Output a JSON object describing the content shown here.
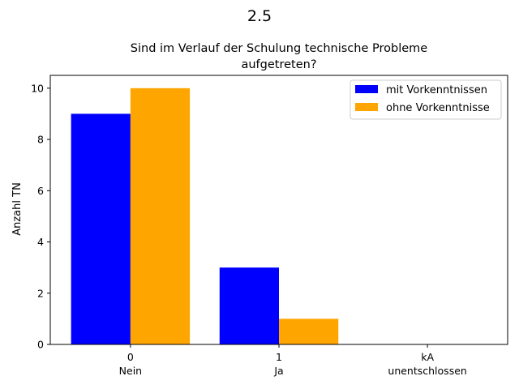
{
  "figure": {
    "suptitle": "2.5"
  },
  "chart_data": {
    "type": "bar",
    "title_lines": [
      "Sind im Verlauf der Schulung technische Probleme",
      "aufgetreten?"
    ],
    "xlabel": "",
    "ylabel": "Anzahl TN",
    "categories": [
      {
        "code": "0",
        "label": "Nein"
      },
      {
        "code": "1",
        "label": "Ja"
      },
      {
        "code": "kA",
        "label": "unentschlossen"
      }
    ],
    "series": [
      {
        "name": "mit Vorkenntnissen",
        "color": "#0000ff",
        "values": [
          9,
          3,
          0
        ]
      },
      {
        "name": "ohne Vorkenntnisse",
        "color": "#ffa500",
        "values": [
          10,
          1,
          0
        ]
      }
    ],
    "ylim": [
      0,
      10.5
    ],
    "yticks": [
      0,
      2,
      4,
      6,
      8,
      10
    ],
    "grid": false,
    "legend_position": "top-right"
  }
}
